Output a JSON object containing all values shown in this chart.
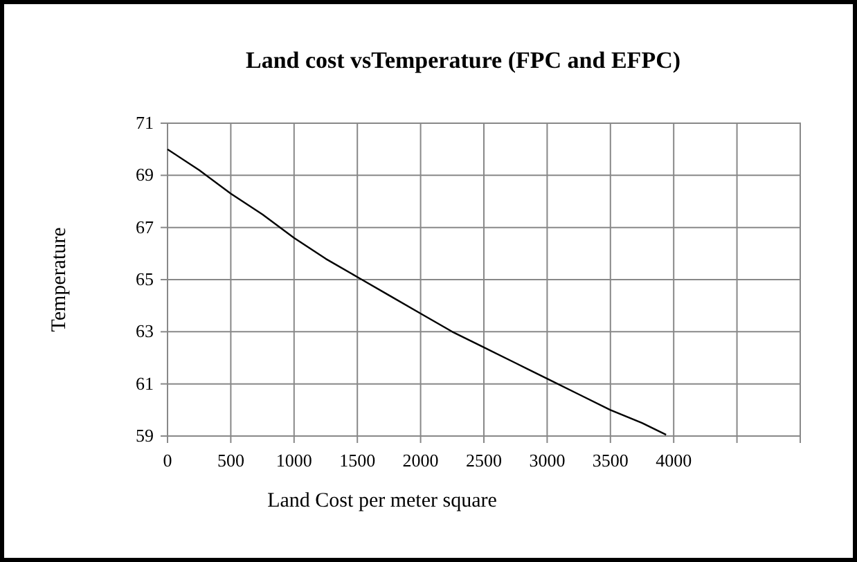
{
  "chart_data": {
    "type": "line",
    "title": "Land cost vsTemperature (FPC and EFPC)",
    "xlabel": "Land Cost per meter square",
    "ylabel": "Temperature",
    "x": [
      0,
      250,
      500,
      750,
      1000,
      1250,
      1500,
      1750,
      2000,
      2250,
      2500,
      2750,
      3000,
      3250,
      3500,
      3750,
      3940
    ],
    "series": [
      {
        "color": "#000000",
        "values": [
          70,
          69.2,
          68.3,
          67.5,
          66.6,
          65.8,
          65.1,
          64.4,
          63.7,
          63.0,
          62.4,
          61.8,
          61.2,
          60.6,
          60.0,
          59.5,
          59.05
        ]
      }
    ],
    "xlim": [
      0,
      5000
    ],
    "xticks": [
      0,
      500,
      1000,
      1500,
      2000,
      2500,
      3000,
      3500,
      4000,
      {
        "value": 4500,
        "label": null
      },
      {
        "value": 5000,
        "label": null
      }
    ],
    "ylim": [
      59,
      71
    ],
    "yticks": [
      59,
      61,
      63,
      65,
      67,
      69,
      71
    ],
    "grid": true,
    "marker": "none",
    "line_style": "solid"
  }
}
